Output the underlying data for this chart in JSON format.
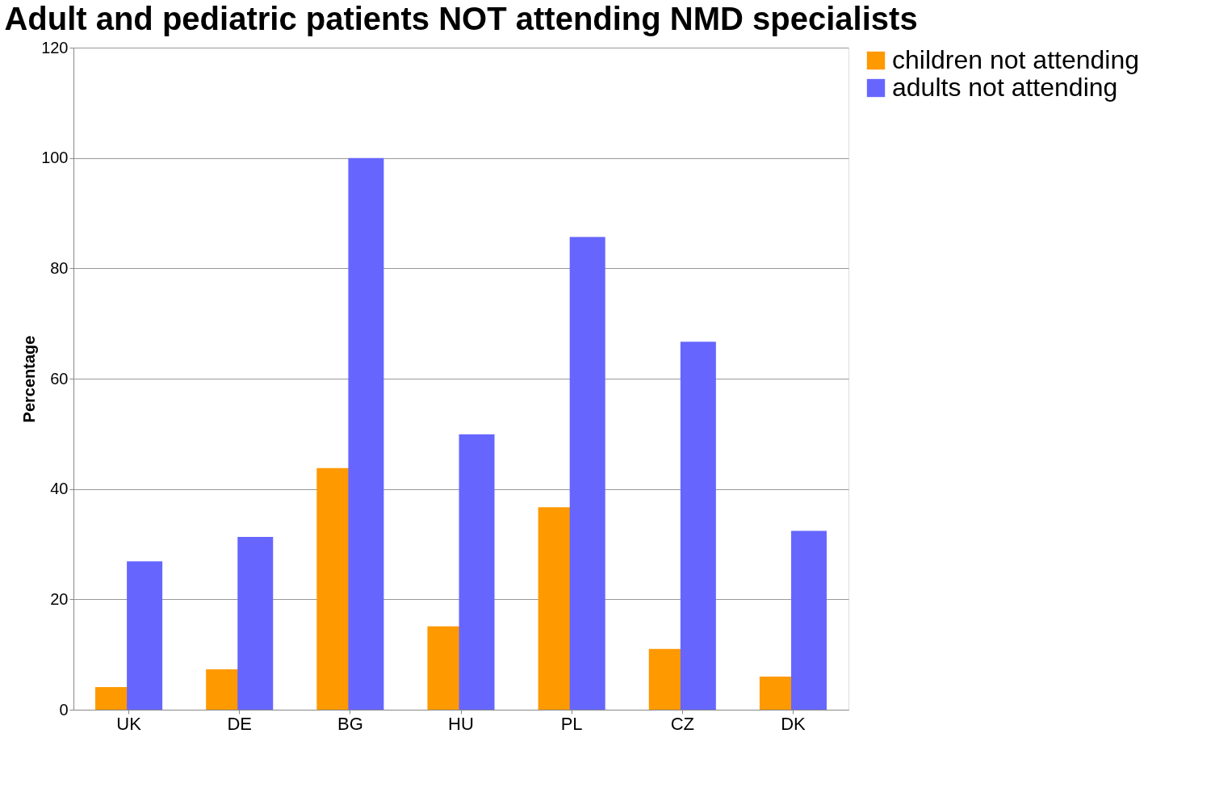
{
  "chart_data": {
    "type": "bar",
    "title": "Adult and pediatric patients NOT attending NMD specialists",
    "ylabel": "Percentage",
    "categories": [
      "UK",
      "DE",
      "BG",
      "HU",
      "PL",
      "CZ",
      "DK"
    ],
    "series": [
      {
        "name": "children not attending",
        "color": "#ff9900",
        "values": [
          4.1,
          7.3,
          43.8,
          15.1,
          36.7,
          11.0,
          6.0
        ]
      },
      {
        "name": "adults not attending",
        "color": "#6666ff",
        "values": [
          26.9,
          31.3,
          100,
          49.9,
          85.7,
          66.7,
          32.4
        ]
      }
    ],
    "ylim": [
      0,
      120
    ],
    "yticks": [
      0,
      20,
      40,
      60,
      80,
      100,
      120
    ],
    "grid": "y",
    "legend": "right"
  }
}
